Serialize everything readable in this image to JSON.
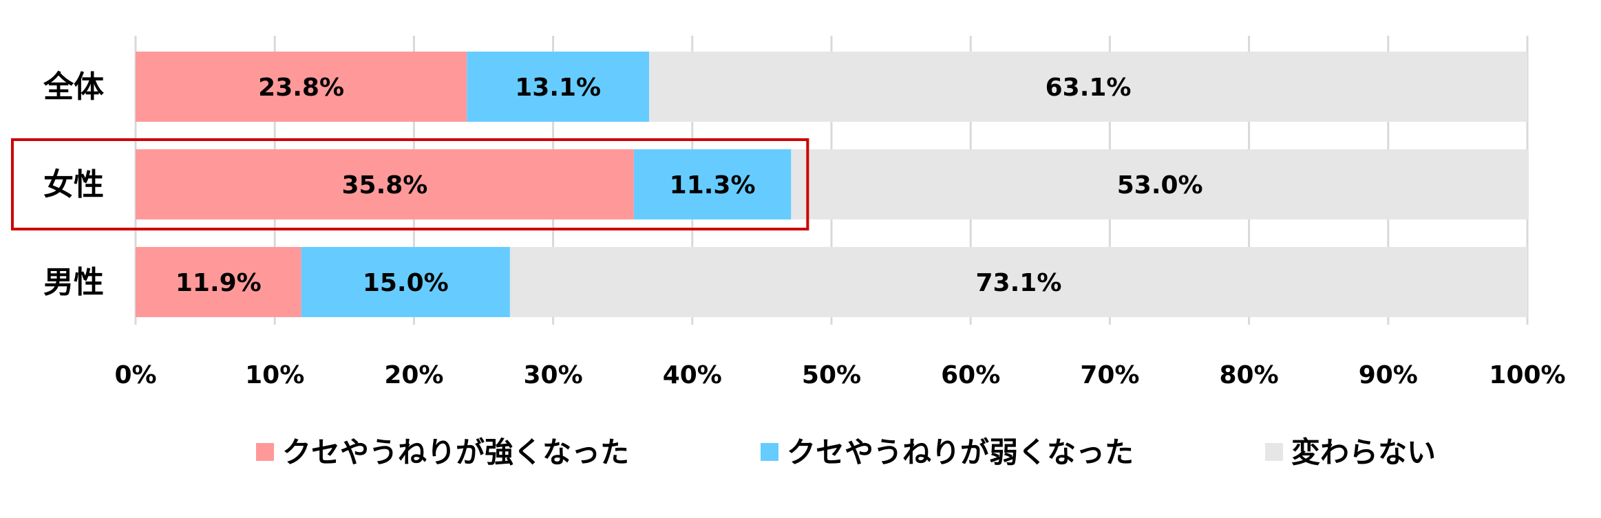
{
  "chart_data": {
    "type": "bar",
    "orientation": "horizontal",
    "stacked": true,
    "categories": [
      "全体",
      "女性",
      "男性"
    ],
    "series": [
      {
        "name": "クセやうねりが強くなった",
        "values": [
          23.8,
          35.8,
          11.9
        ],
        "labels": [
          "23.8%",
          "35.8%",
          "11.9%"
        ],
        "color": "#FF9999"
      },
      {
        "name": "クセやうねりが弱くなった",
        "values": [
          13.1,
          11.3,
          15.0
        ],
        "labels": [
          "13.1%",
          "11.3%",
          "15.0%"
        ],
        "color": "#66CCFF"
      },
      {
        "name": "変わらない",
        "values": [
          63.1,
          53.0,
          73.1
        ],
        "labels": [
          "63.1%",
          "53.0%",
          "73.1%"
        ],
        "color": "#E6E6E6"
      }
    ],
    "xlim": [
      0,
      100
    ],
    "xticks": [
      "0%",
      "10%",
      "20%",
      "30%",
      "40%",
      "50%",
      "60%",
      "70%",
      "80%",
      "90%",
      "100%"
    ],
    "grid": true,
    "legend_position": "bottom",
    "highlight": {
      "category": "女性",
      "color": "#CC0000"
    }
  }
}
